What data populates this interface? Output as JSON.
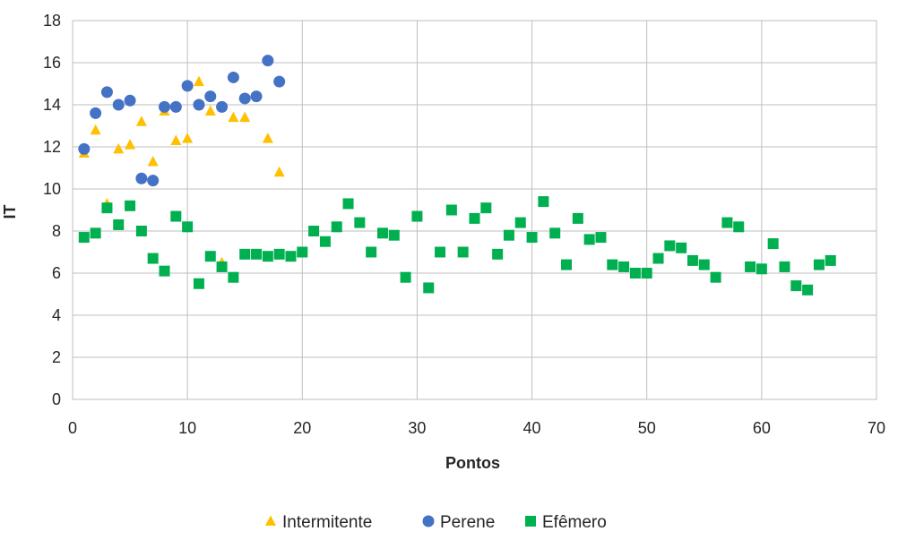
{
  "chart_data": {
    "type": "scatter",
    "title": "",
    "xlabel": "Pontos",
    "ylabel": "IT",
    "xlim": [
      0,
      70
    ],
    "ylim": [
      0,
      18
    ],
    "x_ticks": [
      0,
      10,
      20,
      30,
      40,
      50,
      60,
      70
    ],
    "y_ticks": [
      0,
      2,
      4,
      6,
      8,
      10,
      12,
      14,
      16,
      18
    ],
    "grid": true,
    "legend_position": "bottom",
    "series": [
      {
        "name": "Intermitente",
        "marker": "triangle",
        "color": "#FFC000",
        "points": [
          [
            1,
            11.7
          ],
          [
            2,
            12.8
          ],
          [
            3,
            9.3
          ],
          [
            4,
            11.9
          ],
          [
            5,
            12.1
          ],
          [
            6,
            13.2
          ],
          [
            7,
            11.3
          ],
          [
            8,
            13.7
          ],
          [
            9,
            12.3
          ],
          [
            10,
            12.4
          ],
          [
            11,
            15.1
          ],
          [
            12,
            13.7
          ],
          [
            13,
            6.5
          ],
          [
            14,
            13.4
          ],
          [
            15,
            13.4
          ],
          [
            16,
            6.9
          ],
          [
            17,
            12.4
          ],
          [
            18,
            10.8
          ]
        ]
      },
      {
        "name": "Perene",
        "marker": "circle",
        "color": "#4472C4",
        "points": [
          [
            1,
            11.9
          ],
          [
            2,
            13.6
          ],
          [
            3,
            14.6
          ],
          [
            4,
            14.0
          ],
          [
            5,
            14.2
          ],
          [
            6,
            10.5
          ],
          [
            7,
            10.4
          ],
          [
            8,
            13.9
          ],
          [
            9,
            13.9
          ],
          [
            10,
            14.9
          ],
          [
            11,
            14.0
          ],
          [
            12,
            14.4
          ],
          [
            13,
            13.9
          ],
          [
            14,
            15.3
          ],
          [
            15,
            14.3
          ],
          [
            16,
            14.4
          ],
          [
            17,
            16.1
          ],
          [
            18,
            15.1
          ]
        ]
      },
      {
        "name": "Efêmero",
        "marker": "square",
        "color": "#00B050",
        "points": [
          [
            1,
            7.7
          ],
          [
            2,
            7.9
          ],
          [
            3,
            9.1
          ],
          [
            4,
            8.3
          ],
          [
            5,
            9.2
          ],
          [
            6,
            8.0
          ],
          [
            7,
            6.7
          ],
          [
            8,
            6.1
          ],
          [
            9,
            8.7
          ],
          [
            10,
            8.2
          ],
          [
            11,
            5.5
          ],
          [
            12,
            6.8
          ],
          [
            13,
            6.3
          ],
          [
            14,
            5.8
          ],
          [
            15,
            6.9
          ],
          [
            16,
            6.9
          ],
          [
            17,
            6.8
          ],
          [
            18,
            6.9
          ],
          [
            19,
            6.8
          ],
          [
            20,
            7.0
          ],
          [
            21,
            8.0
          ],
          [
            22,
            7.5
          ],
          [
            23,
            8.2
          ],
          [
            24,
            9.3
          ],
          [
            25,
            8.4
          ],
          [
            26,
            7.0
          ],
          [
            27,
            7.9
          ],
          [
            28,
            7.8
          ],
          [
            29,
            5.8
          ],
          [
            30,
            8.7
          ],
          [
            31,
            5.3
          ],
          [
            32,
            7.0
          ],
          [
            33,
            9.0
          ],
          [
            34,
            7.0
          ],
          [
            35,
            8.6
          ],
          [
            36,
            9.1
          ],
          [
            37,
            6.9
          ],
          [
            38,
            7.8
          ],
          [
            39,
            8.4
          ],
          [
            40,
            7.7
          ],
          [
            41,
            9.4
          ],
          [
            42,
            7.9
          ],
          [
            43,
            6.4
          ],
          [
            44,
            8.6
          ],
          [
            45,
            7.6
          ],
          [
            46,
            7.7
          ],
          [
            47,
            6.4
          ],
          [
            48,
            6.3
          ],
          [
            49,
            6.0
          ],
          [
            50,
            6.0
          ],
          [
            51,
            6.7
          ],
          [
            52,
            7.3
          ],
          [
            53,
            7.2
          ],
          [
            54,
            6.6
          ],
          [
            55,
            6.4
          ],
          [
            56,
            5.8
          ],
          [
            57,
            8.4
          ],
          [
            58,
            8.2
          ],
          [
            59,
            6.3
          ],
          [
            60,
            6.2
          ],
          [
            61,
            7.4
          ],
          [
            62,
            6.3
          ],
          [
            63,
            5.4
          ],
          [
            64,
            5.2
          ],
          [
            65,
            6.4
          ],
          [
            66,
            6.6
          ]
        ]
      }
    ]
  }
}
